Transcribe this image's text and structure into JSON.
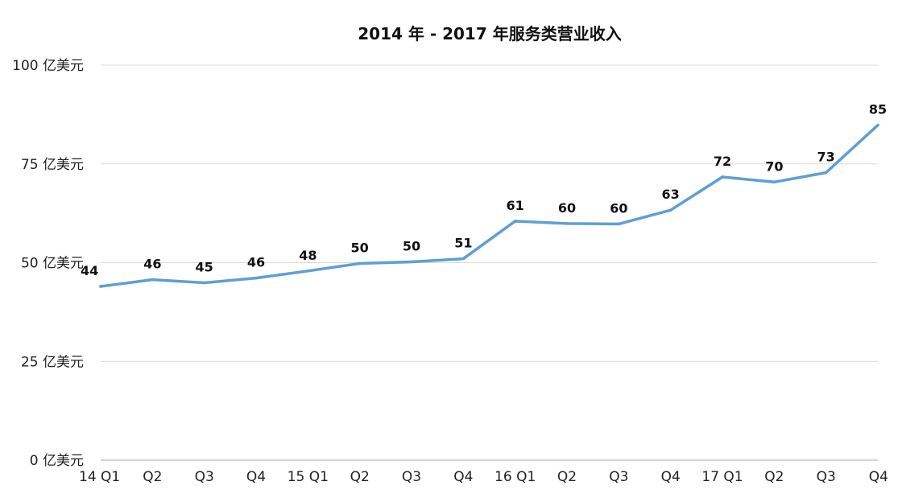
{
  "chart_data": {
    "type": "line",
    "title": "2014 年 - 2017 年服务类营业收入",
    "xlabel": "",
    "ylabel": "",
    "categories": [
      "14 Q1",
      "Q2",
      "Q3",
      "Q4",
      "15 Q1",
      "Q2",
      "Q3",
      "Q4",
      "16 Q1",
      "Q2",
      "Q3",
      "Q4",
      "17 Q1",
      "Q2",
      "Q3",
      "Q4"
    ],
    "series": [
      {
        "values": [
          44,
          45.7,
          44.9,
          46.1,
          47.9,
          49.8,
          50.2,
          51,
          60.5,
          59.9,
          59.8,
          63.3,
          71.7,
          70.4,
          72.8,
          84.8
        ],
        "labels": [
          "44",
          "46",
          "45",
          "46",
          "48",
          "50",
          "50",
          "51",
          "61",
          "60",
          "60",
          "63",
          "72",
          "70",
          "73",
          "85"
        ]
      }
    ],
    "ylim": [
      0,
      100
    ],
    "yticks": [
      0,
      25,
      50,
      75,
      100
    ],
    "ytick_labels": [
      "0 亿美元",
      "25 亿美元",
      "50 亿美元",
      "75 亿美元",
      "100 亿美元"
    ],
    "grid": true,
    "colors": {
      "line": "#5f9fd3",
      "grid": "#dcdcdc",
      "axis": "#aaaaaa"
    }
  }
}
